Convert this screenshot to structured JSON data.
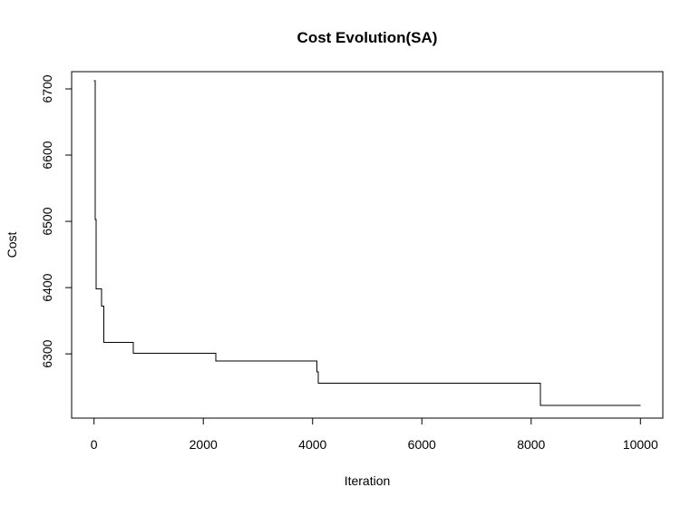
{
  "chart_data": {
    "type": "line",
    "line_style": "step",
    "title": "Cost Evolution(SA)",
    "xlabel": "Iteration",
    "ylabel": "Cost",
    "xlim": [
      -410,
      10410
    ],
    "ylim": [
      6203,
      6726
    ],
    "xticks": [
      0,
      2000,
      4000,
      6000,
      8000,
      10000
    ],
    "yticks": [
      6300,
      6400,
      6500,
      6600,
      6700
    ],
    "grid": false,
    "legend": "none",
    "series": [
      {
        "color": "#000000",
        "x": [
          0,
          20,
          40,
          140,
          180,
          720,
          2230,
          4080,
          4100,
          8170,
          10000
        ],
        "y": [
          6712,
          6503,
          6398,
          6372,
          6317,
          6301,
          6289,
          6273,
          6256,
          6222,
          6222
        ]
      }
    ]
  }
}
